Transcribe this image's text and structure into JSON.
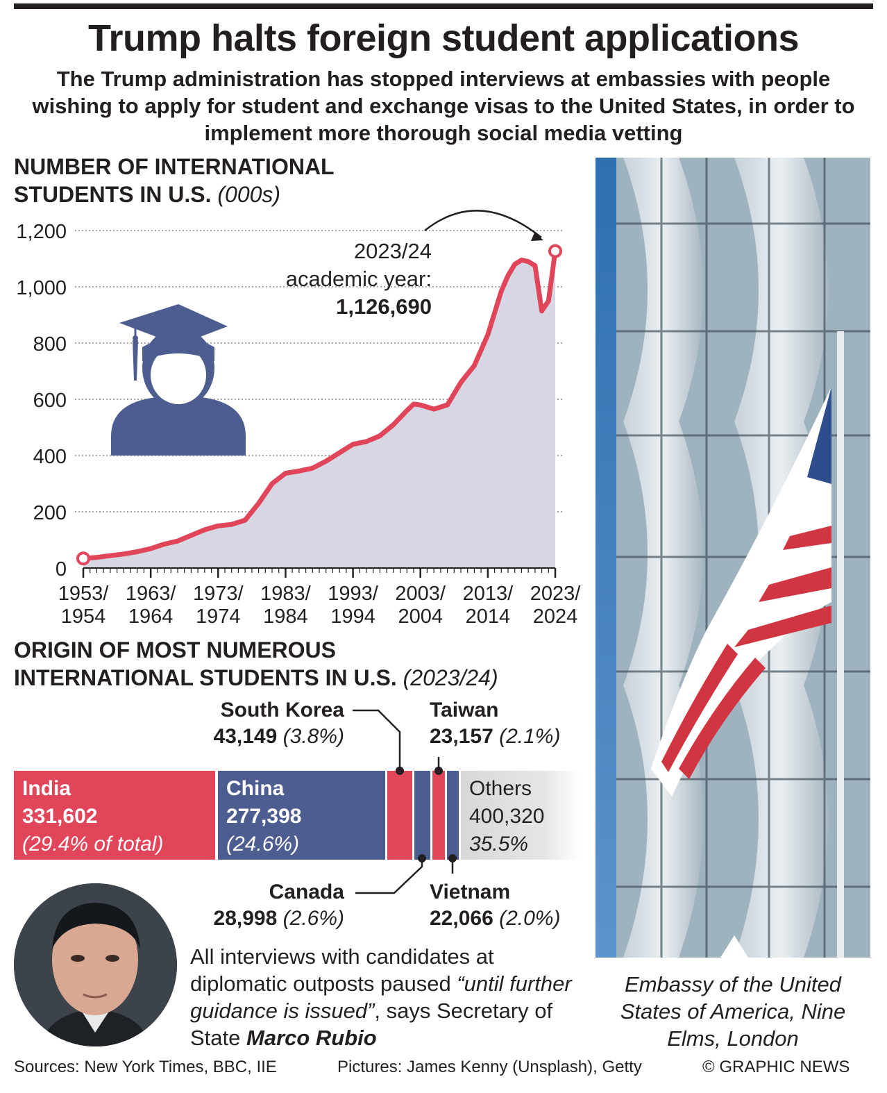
{
  "header": {
    "title": "Trump halts foreign student applications",
    "subtitle": "The Trump administration has stopped interviews at embassies with people wishing to apply for student and exchange visas to the United States, in order to implement more thorough social media vetting"
  },
  "section1": {
    "heading_line1": "NUMBER OF INTERNATIONAL",
    "heading_line2": "STUDENTS IN U.S.",
    "unit": "(000s)"
  },
  "annotation": {
    "line1": "2023/24",
    "line2": "academic year:",
    "value": "1,126,690"
  },
  "section2": {
    "heading_line1": "ORIGIN OF MOST NUMEROUS",
    "heading_line2": "INTERNATIONAL STUDENTS IN U.S.",
    "year": "(2023/24)"
  },
  "origins": {
    "india": {
      "name": "India",
      "value": "331,602",
      "pct": "(29.4% of total)"
    },
    "china": {
      "name": "China",
      "value": "277,398",
      "pct": "(24.6%)"
    },
    "others": {
      "name": "Others",
      "value": "400,320",
      "pct": "35.5%"
    },
    "south_korea": {
      "name": "South Korea",
      "value": "43,149",
      "pct": "(3.8%)"
    },
    "taiwan": {
      "name": "Taiwan",
      "value": "23,157",
      "pct": "(2.1%)"
    },
    "canada": {
      "name": "Canada",
      "value": "28,998",
      "pct": "(2.6%)"
    },
    "vietnam": {
      "name": "Vietnam",
      "value": "22,066",
      "pct": "(2.0%)"
    }
  },
  "quote": {
    "part1": "All interviews with candidates at diplomatic outposts paused ",
    "quoted": "“until further guidance is issued”",
    "part2": ", says Secretary of State ",
    "name": "Marco Rubio"
  },
  "photo_caption": "Embassy of the United States of America, Nine Elms, London",
  "footer": {
    "sources": "Sources: New York Times, BBC, IIE",
    "pictures": "Pictures: James Kenny (Unsplash), Getty",
    "copyright": "© GRAPHIC NEWS"
  },
  "colors": {
    "red": "#e0455a",
    "blue": "#4d5d90",
    "area": "#d6d7e2",
    "others": "#dcdcdc",
    "text": "#231f20"
  },
  "icons": {
    "graduate": "graduate-student-icon",
    "flag": "us-flag-icon"
  },
  "chart_data": [
    {
      "type": "area",
      "title": "NUMBER OF INTERNATIONAL STUDENTS IN U.S.",
      "ylabel": "(000s)",
      "ylim": [
        0,
        1200
      ],
      "yticks": [
        "1,200",
        "1,000",
        "800",
        "600",
        "400",
        "200",
        "0"
      ],
      "yticks_values": [
        1200,
        1000,
        800,
        600,
        400,
        200,
        0
      ],
      "xtick_labels": [
        [
          "1953/",
          "1954"
        ],
        [
          "1963/",
          "1964"
        ],
        [
          "1973/",
          "1974"
        ],
        [
          "1983/",
          "1984"
        ],
        [
          "1993/",
          "1994"
        ],
        [
          "2003/",
          "2004"
        ],
        [
          "2013/",
          "2014"
        ],
        [
          "2023/",
          "2024"
        ]
      ],
      "xtick_years": [
        1953,
        1963,
        1973,
        1983,
        1993,
        2003,
        2013,
        2023
      ],
      "grid": true,
      "series": [
        {
          "x": [
            1953,
            1955,
            1957,
            1959,
            1961,
            1963,
            1965,
            1967,
            1969,
            1971,
            1973,
            1975,
            1977,
            1979,
            1981,
            1983,
            1985,
            1987,
            1989,
            1991,
            1993,
            1995,
            1997,
            1999,
            2001,
            2002,
            2003,
            2005,
            2007,
            2009,
            2011,
            2013,
            2015,
            2016,
            2017,
            2018,
            2019,
            2020,
            2021,
            2022,
            2023
          ],
          "y": [
            34,
            38,
            44,
            50,
            58,
            69,
            85,
            96,
            116,
            136,
            150,
            155,
            170,
            230,
            300,
            337,
            345,
            355,
            380,
            410,
            440,
            450,
            470,
            510,
            560,
            583,
            580,
            565,
            580,
            660,
            720,
            830,
            985,
            1040,
            1080,
            1095,
            1090,
            1075,
            914,
            950,
            1127
          ]
        }
      ],
      "annotation": "2023/24 academic year: 1,126,690"
    },
    {
      "type": "bar",
      "orientation": "horizontal-stacked",
      "title": "ORIGIN OF MOST NUMEROUS INTERNATIONAL STUDENTS IN U.S. (2023/24)",
      "categories": [
        "India",
        "China",
        "South Korea",
        "Canada",
        "Taiwan",
        "Vietnam",
        "Others"
      ],
      "values": [
        331602,
        277398,
        43149,
        28998,
        23157,
        22066,
        400320
      ],
      "percentages": [
        29.4,
        24.6,
        3.8,
        2.6,
        2.1,
        2.0,
        35.5
      ]
    }
  ]
}
